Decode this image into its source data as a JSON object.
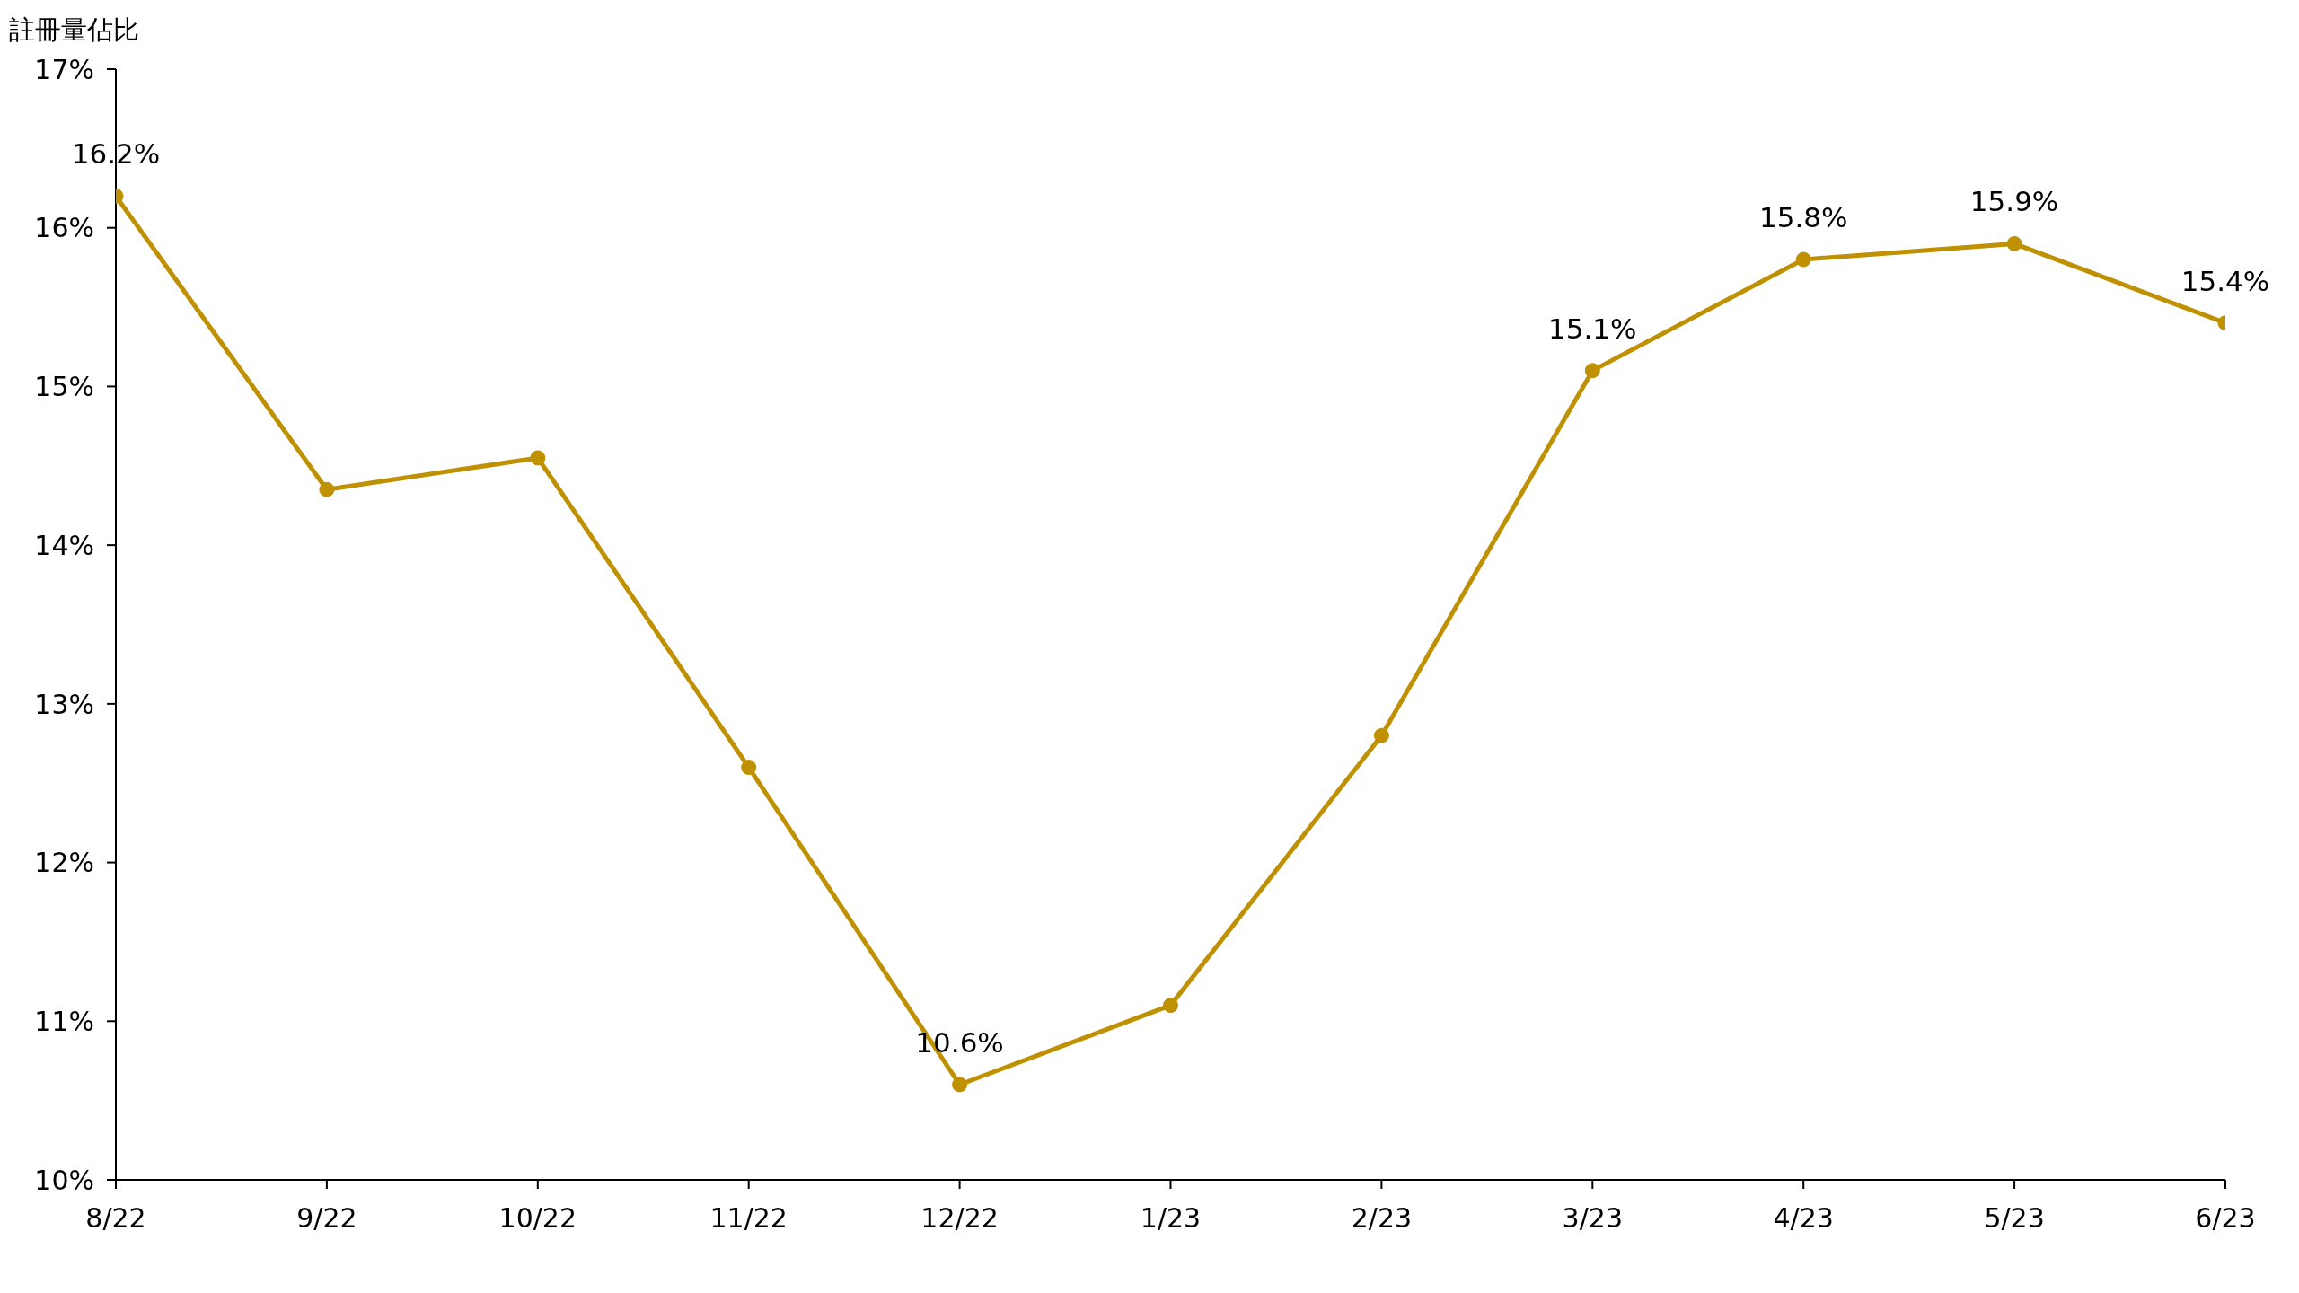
{
  "chart_data": {
    "type": "line",
    "ylabel": "註冊量佔比",
    "categories": [
      "8/22",
      "9/22",
      "10/22",
      "11/22",
      "12/22",
      "1/23",
      "2/23",
      "3/23",
      "4/23",
      "5/23",
      "6/23"
    ],
    "values": [
      16.2,
      14.35,
      14.55,
      12.6,
      10.6,
      11.1,
      12.8,
      15.1,
      15.8,
      15.9,
      15.4
    ],
    "value_labels": [
      "16.2%",
      null,
      null,
      null,
      "10.6%",
      null,
      null,
      "15.1%",
      "15.8%",
      "15.9%",
      "15.4%"
    ],
    "color": "#bf9000",
    "marker": "circle",
    "ylim": [
      10,
      17
    ],
    "yticks": [
      {
        "value": 10,
        "label": "10%"
      },
      {
        "value": 11,
        "label": "11%"
      },
      {
        "value": 12,
        "label": "12%"
      },
      {
        "value": 13,
        "label": "13%"
      },
      {
        "value": 14,
        "label": "14%"
      },
      {
        "value": 15,
        "label": "15%"
      },
      {
        "value": 16,
        "label": "16%"
      },
      {
        "value": 17,
        "label": "17%"
      }
    ]
  }
}
